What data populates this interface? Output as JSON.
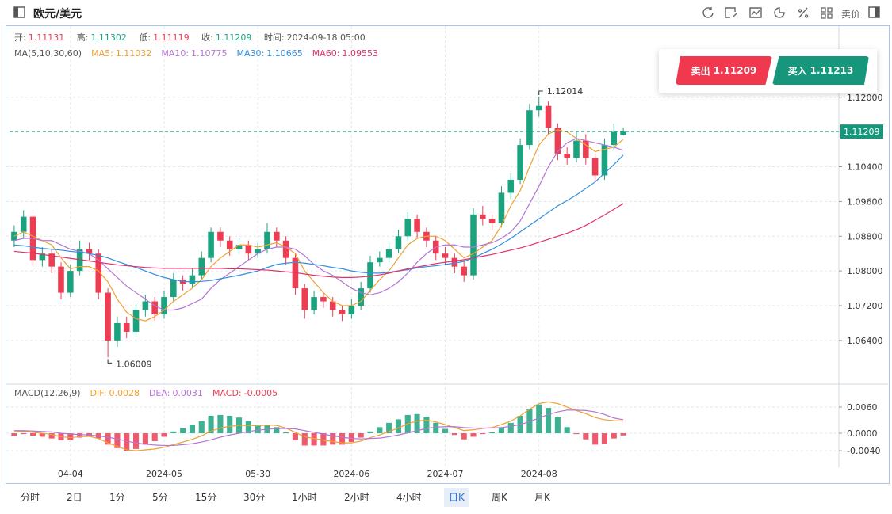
{
  "header": {
    "title": "欧元/美元",
    "price_toggle": "卖价"
  },
  "info": {
    "open_label": "开:",
    "high_label": "高:",
    "low_label": "低:",
    "close_label": "收:",
    "time_label": "时间:",
    "time": "2024-09-18 05:00"
  },
  "trade": {
    "sell_label": "卖出",
    "sell_price": 1.11209,
    "buy_label": "买入",
    "buy_price": 1.11213
  },
  "toolbar": {
    "periods": [
      "分时",
      "2日",
      "1分",
      "5分",
      "15分",
      "30分",
      "1小时",
      "2小时",
      "4小时",
      "日K",
      "周K",
      "月K"
    ],
    "active": 9
  },
  "chart_data": [
    {
      "type": "candlestick",
      "legend_title": "MA(5,10,30,60)",
      "up_color": "#1ba37f",
      "down_color": "#ec3d52",
      "grid": true,
      "categories": [
        null,
        null,
        null,
        null,
        null,
        null,
        "04-04",
        null,
        null,
        null,
        null,
        null,
        null,
        null,
        null,
        null,
        "2024-05",
        null,
        null,
        null,
        null,
        null,
        null,
        null,
        null,
        null,
        "05-30",
        null,
        null,
        null,
        null,
        null,
        null,
        null,
        null,
        null,
        "2024-06",
        null,
        null,
        null,
        null,
        null,
        null,
        null,
        null,
        null,
        "2024-07",
        null,
        null,
        null,
        null,
        null,
        null,
        null,
        null,
        null,
        "2024-08",
        null,
        null,
        null,
        null,
        null,
        null,
        null,
        null,
        null
      ],
      "open": [
        1.087,
        1.089,
        1.0925,
        1.0825,
        1.084,
        1.081,
        1.075,
        1.08,
        1.085,
        1.084,
        1.075,
        1.064,
        1.068,
        1.066,
        1.071,
        1.073,
        1.07,
        1.074,
        1.078,
        1.077,
        1.079,
        1.083,
        1.089,
        1.087,
        1.085,
        1.086,
        1.084,
        1.085,
        1.089,
        1.087,
        1.083,
        1.076,
        1.071,
        1.074,
        1.073,
        1.071,
        1.07,
        1.072,
        1.076,
        1.082,
        1.083,
        1.085,
        1.088,
        1.092,
        1.089,
        1.087,
        1.084,
        1.083,
        1.081,
        1.079,
        1.093,
        1.092,
        1.091,
        1.098,
        1.101,
        1.109,
        1.117,
        1.118,
        1.113,
        1.107,
        1.106,
        1.11,
        1.106,
        1.102,
        1.109,
        1.11131
      ],
      "high": [
        1.0905,
        1.094,
        1.0935,
        1.0855,
        1.085,
        1.082,
        1.0815,
        1.087,
        1.0865,
        1.085,
        1.076,
        1.0695,
        1.0695,
        1.0725,
        1.0745,
        1.074,
        1.0755,
        1.0795,
        1.079,
        1.0805,
        1.0845,
        1.09,
        1.09,
        1.088,
        1.0875,
        1.087,
        1.0865,
        1.091,
        1.09,
        1.088,
        1.084,
        1.077,
        1.0755,
        1.075,
        1.074,
        1.072,
        1.0735,
        1.0775,
        1.0835,
        1.0845,
        1.0865,
        1.0895,
        1.0935,
        1.093,
        1.09,
        1.088,
        1.0855,
        1.084,
        1.0825,
        1.0945,
        1.095,
        1.093,
        1.0995,
        1.1025,
        1.1105,
        1.1185,
        1.12014,
        1.119,
        1.114,
        1.1085,
        1.112,
        1.1115,
        1.107,
        1.1105,
        1.114,
        1.11302
      ],
      "low": [
        1.0855,
        1.0875,
        1.081,
        1.081,
        1.0795,
        1.0735,
        1.074,
        1.079,
        1.0825,
        1.0735,
        1.06009,
        1.0625,
        1.0645,
        1.065,
        1.0695,
        1.0685,
        1.069,
        1.073,
        1.0755,
        1.076,
        1.078,
        1.082,
        1.0855,
        1.0835,
        1.084,
        1.0825,
        1.083,
        1.084,
        1.0855,
        1.0815,
        1.0745,
        1.069,
        1.07,
        1.0715,
        1.0695,
        1.0685,
        1.069,
        1.071,
        1.075,
        1.081,
        1.082,
        1.084,
        1.087,
        1.0875,
        1.0855,
        1.0825,
        1.0815,
        1.0795,
        1.0775,
        1.078,
        1.0905,
        1.0895,
        1.09,
        1.0965,
        1.1,
        1.108,
        1.1155,
        1.1115,
        1.1055,
        1.1045,
        1.105,
        1.1045,
        1.1005,
        1.101,
        1.108,
        1.11119
      ],
      "close": [
        1.089,
        1.0925,
        1.0825,
        1.084,
        1.081,
        1.075,
        1.08,
        1.085,
        1.084,
        1.075,
        1.064,
        1.068,
        1.066,
        1.071,
        1.073,
        1.07,
        1.074,
        1.078,
        1.077,
        1.079,
        1.083,
        1.089,
        1.087,
        1.085,
        1.086,
        1.084,
        1.085,
        1.089,
        1.087,
        1.083,
        1.076,
        1.071,
        1.074,
        1.073,
        1.071,
        1.07,
        1.072,
        1.076,
        1.082,
        1.083,
        1.085,
        1.088,
        1.092,
        1.089,
        1.087,
        1.084,
        1.083,
        1.081,
        1.079,
        1.093,
        1.092,
        1.091,
        1.098,
        1.101,
        1.109,
        1.117,
        1.118,
        1.113,
        1.107,
        1.106,
        1.11,
        1.106,
        1.102,
        1.109,
        1.112,
        1.11209
      ],
      "series": [
        {
          "name": "MA5",
          "color": "#f0a030",
          "values": [
            1.088,
            1.089,
            1.088,
            1.087,
            1.086,
            1.083,
            1.0805,
            1.081,
            1.081,
            1.08,
            1.0775,
            1.0735,
            1.0705,
            1.069,
            1.0685,
            1.0695,
            1.071,
            1.073,
            1.0745,
            1.076,
            1.078,
            1.081,
            1.083,
            1.0845,
            1.086,
            1.086,
            1.0855,
            1.086,
            1.0865,
            1.0855,
            1.084,
            1.08,
            1.0775,
            1.075,
            1.073,
            1.072,
            1.072,
            1.073,
            1.0755,
            1.078,
            1.08,
            1.083,
            1.086,
            1.0875,
            1.088,
            1.088,
            1.087,
            1.085,
            1.083,
            1.084,
            1.0855,
            1.087,
            1.0905,
            1.095,
            1.0985,
            1.104,
            1.109,
            1.1115,
            1.1125,
            1.112,
            1.1105,
            1.109,
            1.1075,
            1.108,
            1.1085,
            1.11032
          ]
        },
        {
          "name": "MA10",
          "color": "#b575d6",
          "values": [
            1.087,
            1.0875,
            1.0875,
            1.087,
            1.087,
            1.086,
            1.085,
            1.0845,
            1.084,
            1.0825,
            1.0805,
            1.0785,
            1.0765,
            1.075,
            1.0735,
            1.072,
            1.071,
            1.071,
            1.0715,
            1.0725,
            1.0735,
            1.076,
            1.078,
            1.0795,
            1.081,
            1.0825,
            1.084,
            1.085,
            1.0855,
            1.0855,
            1.085,
            1.0835,
            1.0815,
            1.08,
            1.079,
            1.0775,
            1.076,
            1.075,
            1.0745,
            1.075,
            1.076,
            1.0775,
            1.0795,
            1.082,
            1.084,
            1.0855,
            1.086,
            1.086,
            1.0855,
            1.0855,
            1.086,
            1.0865,
            1.0875,
            1.089,
            1.0915,
            1.0955,
            1.0995,
            1.104,
            1.1075,
            1.1095,
            1.1105,
            1.11,
            1.1095,
            1.109,
            1.1085,
            1.10775
          ]
        },
        {
          "name": "MA30",
          "color": "#2f8fe0",
          "values": [
            1.086,
            1.0858,
            1.0855,
            1.0852,
            1.085,
            1.0848,
            1.0845,
            1.0843,
            1.084,
            1.0836,
            1.083,
            1.0822,
            1.0815,
            1.0808,
            1.08,
            1.0792,
            1.0785,
            1.078,
            1.0776,
            1.0775,
            1.0776,
            1.0778,
            1.0782,
            1.0786,
            1.079,
            1.0795,
            1.08,
            1.0808,
            1.0815,
            1.0818,
            1.082,
            1.0818,
            1.0815,
            1.0812,
            1.0808,
            1.0805,
            1.08,
            1.0797,
            1.0795,
            1.0795,
            1.0797,
            1.08,
            1.0803,
            1.0807,
            1.081,
            1.0812,
            1.0815,
            1.0818,
            1.0822,
            1.083,
            1.084,
            1.085,
            1.0862,
            1.0875,
            1.089,
            1.0905,
            1.092,
            1.0935,
            1.095,
            1.0962,
            1.0975,
            1.099,
            1.1005,
            1.1025,
            1.1045,
            1.10665
          ]
        },
        {
          "name": "MA60",
          "color": "#e0306a",
          "values": [
            1.0845,
            1.0843,
            1.0841,
            1.0838,
            1.0835,
            1.0832,
            1.0829,
            1.0826,
            1.0823,
            1.082,
            1.0817,
            1.0814,
            1.0812,
            1.081,
            1.0808,
            1.0807,
            1.0806,
            1.0806,
            1.0806,
            1.0806,
            1.0806,
            1.0806,
            1.0806,
            1.0805,
            1.0805,
            1.0804,
            1.0803,
            1.0802,
            1.08,
            1.0798,
            1.0796,
            1.0793,
            1.079,
            1.0788,
            1.0786,
            1.0785,
            1.0785,
            1.0786,
            1.0788,
            1.0791,
            1.0795,
            1.08,
            1.0805,
            1.0809,
            1.0813,
            1.0817,
            1.082,
            1.0823,
            1.0826,
            1.083,
            1.0834,
            1.0838,
            1.0843,
            1.0848,
            1.0853,
            1.0859,
            1.0866,
            1.0873,
            1.088,
            1.0887,
            1.0895,
            1.0905,
            1.0917,
            1.0929,
            1.0942,
            1.09553
          ]
        }
      ],
      "ylim": [
        1.0545,
        1.136
      ],
      "yticks": [
        {
          "value": 1.12,
          "label": "1.12000"
        },
        {
          "value": 1.104,
          "label": "1.10400"
        },
        {
          "value": 1.096,
          "label": "1.09600"
        },
        {
          "value": 1.088,
          "label": "1.08800"
        },
        {
          "value": 1.08,
          "label": "1.08000"
        },
        {
          "value": 1.072,
          "label": "1.07200"
        },
        {
          "value": 1.064,
          "label": "1.06400"
        }
      ]
    },
    {
      "type": "macd",
      "legend_title": "MACD(12,26,9)",
      "grid": true,
      "series": [
        {
          "name": "DIF",
          "type": "line",
          "color": "#f0a030",
          "values": [
            0.0003,
            0.0005,
            0.0002,
            0.0,
            -0.0003,
            -0.0008,
            -0.001,
            -0.0008,
            -0.0007,
            -0.0012,
            -0.0022,
            -0.003,
            -0.0038,
            -0.004,
            -0.0038,
            -0.0036,
            -0.0032,
            -0.0026,
            -0.002,
            -0.0014,
            -0.0006,
            0.0005,
            0.0012,
            0.0016,
            0.0018,
            0.0018,
            0.0017,
            0.0019,
            0.0018,
            0.0012,
            0.0002,
            -0.0008,
            -0.0012,
            -0.0016,
            -0.0019,
            -0.0022,
            -0.0022,
            -0.0018,
            -0.001,
            -0.0004,
            0.0004,
            0.0012,
            0.0022,
            0.0028,
            0.003,
            0.0026,
            0.002,
            0.0013,
            0.0006,
            0.0008,
            0.0011,
            0.0013,
            0.002,
            0.0028,
            0.004,
            0.0055,
            0.0068,
            0.0072,
            0.0068,
            0.006,
            0.0052,
            0.0045,
            0.0036,
            0.0031,
            0.0029,
            0.0028
          ]
        },
        {
          "name": "DEA",
          "type": "line",
          "color": "#b575d6",
          "values": [
            0.0006,
            0.0006,
            0.0005,
            0.0004,
            0.0003,
            0.0,
            -0.0002,
            -0.0003,
            -0.0004,
            -0.0006,
            -0.0009,
            -0.0013,
            -0.0018,
            -0.0022,
            -0.0025,
            -0.0027,
            -0.0028,
            -0.0028,
            -0.0026,
            -0.0024,
            -0.002,
            -0.0015,
            -0.0009,
            -0.0004,
            0.0,
            0.0004,
            0.0007,
            0.0009,
            0.0011,
            0.0011,
            0.001,
            0.0006,
            0.0002,
            -0.0002,
            -0.0006,
            -0.0009,
            -0.0012,
            -0.0013,
            -0.0012,
            -0.0011,
            -0.0008,
            -0.0004,
            0.0001,
            0.0006,
            0.0011,
            0.0014,
            0.0015,
            0.0015,
            0.0013,
            0.0012,
            0.0012,
            0.0012,
            0.0013,
            0.0016,
            0.002,
            0.0027,
            0.0035,
            0.0043,
            0.0049,
            0.0053,
            0.0053,
            0.0052,
            0.0049,
            0.0043,
            0.0035,
            0.0031
          ]
        },
        {
          "name": "MACD",
          "type": "bar",
          "color": "#ec3d52",
          "up_color": "#1ba37f",
          "values": [
            -0.0006,
            -0.0002,
            -0.0006,
            -0.0008,
            -0.0012,
            -0.0016,
            -0.0016,
            -0.001,
            -0.0006,
            -0.0012,
            -0.0026,
            -0.0034,
            -0.004,
            -0.0036,
            -0.0026,
            -0.0018,
            -0.0008,
            0.0004,
            0.0012,
            0.002,
            0.0028,
            0.004,
            0.0042,
            0.004,
            0.0036,
            0.0028,
            0.002,
            0.002,
            0.0014,
            0.0002,
            -0.0016,
            -0.0028,
            -0.0028,
            -0.0028,
            -0.0026,
            -0.0026,
            -0.002,
            -0.001,
            0.0004,
            0.0014,
            0.0024,
            0.0032,
            0.0042,
            0.0044,
            0.0038,
            0.0024,
            0.001,
            -0.0004,
            -0.0014,
            -0.0008,
            -0.0002,
            0.0002,
            0.0014,
            0.0024,
            0.004,
            0.0056,
            0.0066,
            0.0058,
            0.0038,
            0.0014,
            -0.0002,
            -0.0014,
            -0.0026,
            -0.0024,
            -0.0012,
            -0.0005
          ]
        }
      ],
      "ylim": [
        -0.0078,
        0.0109
      ],
      "yticks": [
        {
          "value": 0.006,
          "label": "0.0060"
        },
        {
          "value": 0,
          "label": "0.0000"
        },
        {
          "value": -0.004,
          "label": "-0.0040"
        }
      ]
    }
  ]
}
